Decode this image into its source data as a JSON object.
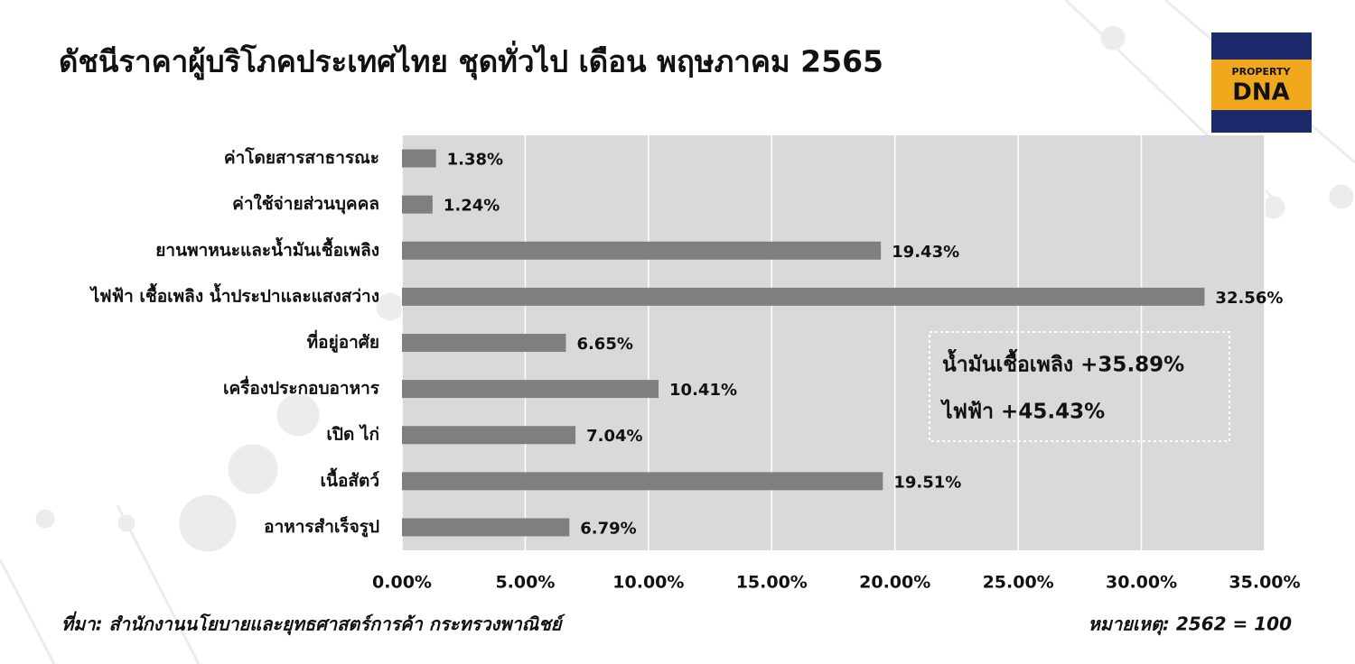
{
  "chart_data": {
    "type": "hbar",
    "title": "ดัชนีราคาผู้บริโภคประเทศไทย ชุดทั่วไป เดือน พฤษภาคม  2565",
    "categories": [
      "ค่าโดยสารสาธารณะ",
      "ค่าใช้จ่ายส่วนบุคคล",
      "ยานพาหนะและน้ำมันเชื้อเพลิง",
      "ไฟฟ้า เชื้อเพลิง น้ำประปาและแสงสว่าง",
      "ที่อยู่อาศัย",
      "เครื่องประกอบอาหาร",
      "เปิด ไก่",
      "เนื้อสัตว์",
      "อาหารสำเร็จรูป"
    ],
    "values": [
      1.38,
      1.24,
      19.43,
      32.56,
      6.65,
      10.41,
      7.04,
      19.51,
      6.79
    ],
    "value_labels": [
      "1.38%",
      "1.24%",
      "19.43%",
      "32.56%",
      "6.65%",
      "10.41%",
      "7.04%",
      "19.51%",
      "6.79%"
    ],
    "color": "#7f7f7f",
    "xlim": [
      0,
      35
    ],
    "xticks": [
      {
        "value": 0,
        "label": "0.00%"
      },
      {
        "value": 5,
        "label": "5.00%"
      },
      {
        "value": 10,
        "label": "10.00%"
      },
      {
        "value": 15,
        "label": "15.00%"
      },
      {
        "value": 20,
        "label": "20.00%"
      },
      {
        "value": 25,
        "label": "25.00%"
      },
      {
        "value": 30,
        "label": "30.00%"
      },
      {
        "value": 35,
        "label": "35.00%"
      }
    ],
    "grid": true,
    "annotations": [
      "น้ำมันเชื้อเพลิง +35.89%",
      "ไฟฟ้า +45.43%"
    ],
    "source": "ที่มา: สำนักงานนโยบายและยุทธศาสตร์การค้า กระทรวงพาณิชย์",
    "note": "หมายเหตุ: 2562 = 100"
  },
  "logo": {
    "line1": "PROPERTY",
    "line2": "DNA"
  }
}
